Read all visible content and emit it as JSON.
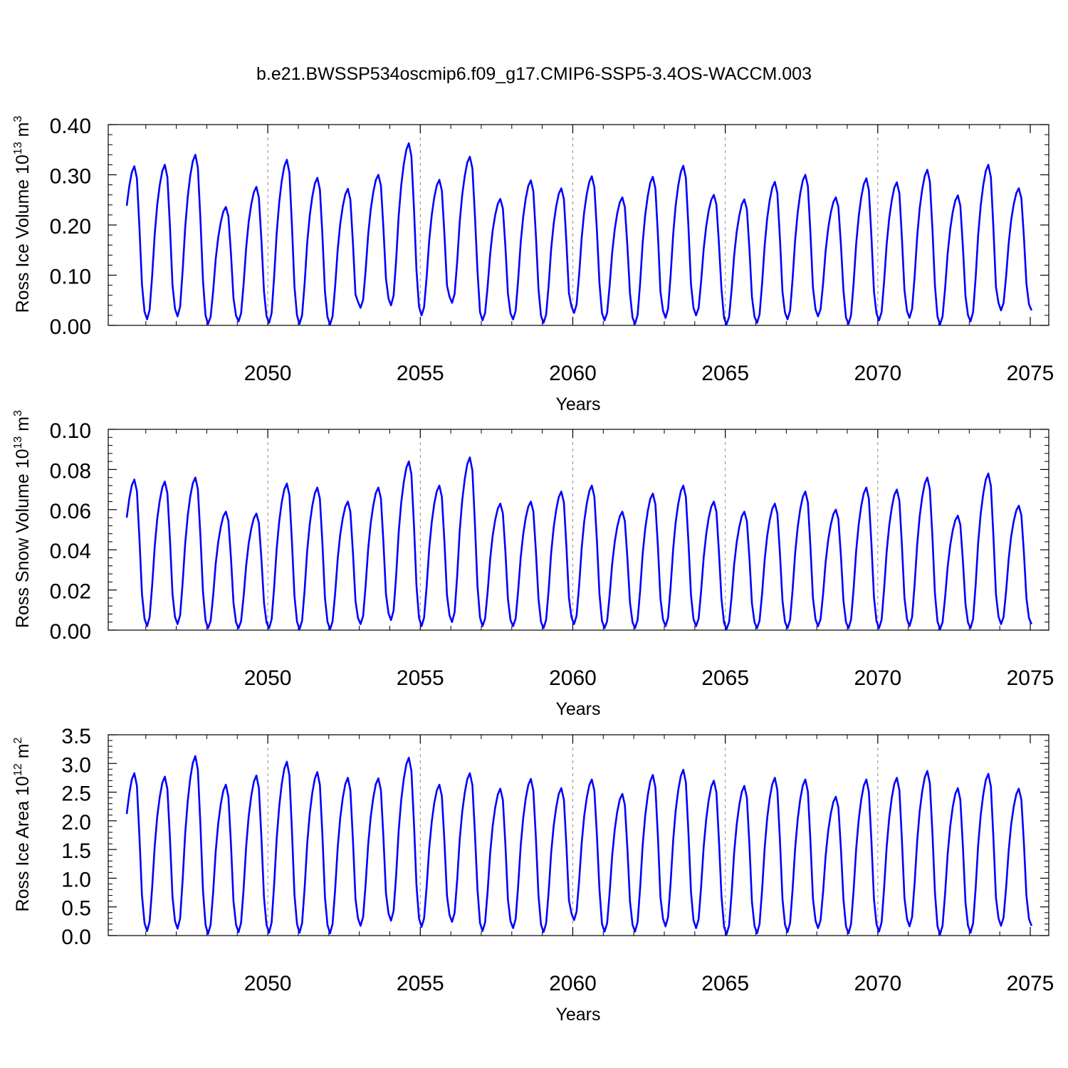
{
  "title": "b.e21.BWSSP534oscmip6.f09_g17.CMIP6-SSP5-3.4OS-WACCM.003",
  "colors": {
    "series": "#0000ff",
    "axis": "#000000",
    "gridline": "#888888",
    "background": "#ffffff"
  },
  "chart_data": [
    {
      "type": "line",
      "ylabel_main": "Ross Ice Volume 10",
      "ylabel_exp": "13",
      "ylabel_unit": " m",
      "ylabel_unit_exp": "3",
      "xlabel": "Years",
      "xlim": [
        2045.375,
        2075.0
      ],
      "ylim": [
        0.0,
        0.4
      ],
      "yticks": [
        "0.00",
        "0.10",
        "0.20",
        "0.30",
        "0.40"
      ],
      "ytick_values": [
        0.0,
        0.1,
        0.2,
        0.3,
        0.4
      ],
      "xticks": [
        "2050",
        "2055",
        "2060",
        "2065",
        "2070",
        "2075"
      ],
      "xtick_values": [
        2050,
        2055,
        2060,
        2065,
        2070,
        2075
      ],
      "series": [
        {
          "name": "Ross Ice Volume",
          "start_year": 2045.375,
          "step": 0.0833333,
          "annual_min": [
            0.015,
            0.012,
            0.018,
            0.003,
            0.008,
            0.005,
            0.003,
            0.002,
            0.035,
            0.04,
            0.02,
            0.045,
            0.01,
            0.012,
            0.005,
            0.025,
            0.01,
            0.003,
            0.015,
            0.02,
            0.002,
            0.005,
            0.012,
            0.018,
            0.003,
            0.01,
            0.015,
            0.002,
            0.008,
            0.03
          ],
          "annual_max": [
            0.317,
            0.32,
            0.34,
            0.236,
            0.276,
            0.33,
            0.294,
            0.272,
            0.3,
            0.363,
            0.29,
            0.336,
            0.252,
            0.289,
            0.273,
            0.297,
            0.255,
            0.296,
            0.318,
            0.26,
            0.251,
            0.286,
            0.3,
            0.255,
            0.293,
            0.285,
            0.31,
            0.259,
            0.32,
            0.273
          ]
        }
      ]
    },
    {
      "type": "line",
      "ylabel_main": "Ross Snow Volume 10",
      "ylabel_exp": "13",
      "ylabel_unit": " m",
      "ylabel_unit_exp": "3",
      "xlabel": "Years",
      "xlim": [
        2045.375,
        2075.0
      ],
      "ylim": [
        0.0,
        0.1
      ],
      "yticks": [
        "0.00",
        "0.02",
        "0.04",
        "0.06",
        "0.08",
        "0.10"
      ],
      "ytick_values": [
        0.0,
        0.02,
        0.04,
        0.06,
        0.08,
        0.1
      ],
      "xticks": [
        "2050",
        "2055",
        "2060",
        "2065",
        "2070",
        "2075"
      ],
      "xtick_values": [
        2050,
        2055,
        2060,
        2065,
        2070,
        2075
      ],
      "series": [
        {
          "name": "Ross Snow Volume",
          "start_year": 2045.375,
          "step": 0.0833333,
          "annual_min": [
            0.002,
            0.002,
            0.003,
            0.001,
            0.001,
            0.001,
            0.0005,
            0.0005,
            0.003,
            0.005,
            0.002,
            0.004,
            0.002,
            0.002,
            0.001,
            0.003,
            0.001,
            0.001,
            0.002,
            0.002,
            0.0005,
            0.001,
            0.001,
            0.002,
            0.001,
            0.001,
            0.002,
            0.0005,
            0.001,
            0.003
          ],
          "annual_max": [
            0.075,
            0.074,
            0.076,
            0.059,
            0.058,
            0.073,
            0.071,
            0.064,
            0.071,
            0.084,
            0.072,
            0.086,
            0.063,
            0.064,
            0.069,
            0.072,
            0.059,
            0.068,
            0.072,
            0.064,
            0.059,
            0.063,
            0.069,
            0.06,
            0.071,
            0.07,
            0.076,
            0.057,
            0.078,
            0.062
          ]
        }
      ]
    },
    {
      "type": "line",
      "ylabel_main": "Ross Ice Area 10",
      "ylabel_exp": "12",
      "ylabel_unit": " m",
      "ylabel_unit_exp": "2",
      "xlabel": "Years",
      "xlim": [
        2045.375,
        2075.0
      ],
      "ylim": [
        0.0,
        3.5
      ],
      "yticks": [
        "0.0",
        "0.5",
        "1.0",
        "1.5",
        "2.0",
        "2.5",
        "3.0",
        "3.5"
      ],
      "ytick_values": [
        0.0,
        0.5,
        1.0,
        1.5,
        2.0,
        2.5,
        3.0,
        3.5
      ],
      "xticks": [
        "2050",
        "2055",
        "2060",
        "2065",
        "2070",
        "2075"
      ],
      "xtick_values": [
        2050,
        2055,
        2060,
        2065,
        2070,
        2075
      ],
      "series": [
        {
          "name": "Ross Ice Area",
          "start_year": 2045.375,
          "step": 0.0833333,
          "annual_min": [
            0.1,
            0.08,
            0.12,
            0.03,
            0.06,
            0.05,
            0.05,
            0.04,
            0.17,
            0.26,
            0.15,
            0.24,
            0.08,
            0.13,
            0.06,
            0.27,
            0.07,
            0.07,
            0.16,
            0.13,
            0.02,
            0.04,
            0.06,
            0.13,
            0.04,
            0.07,
            0.16,
            0.02,
            0.05,
            0.17
          ],
          "annual_max": [
            2.83,
            2.77,
            3.13,
            2.63,
            2.79,
            3.03,
            2.85,
            2.75,
            2.74,
            3.1,
            2.63,
            2.83,
            2.56,
            2.73,
            2.57,
            2.72,
            2.47,
            2.8,
            2.89,
            2.7,
            2.61,
            2.75,
            2.72,
            2.42,
            2.72,
            2.75,
            2.87,
            2.57,
            2.82,
            2.56
          ]
        }
      ]
    }
  ]
}
